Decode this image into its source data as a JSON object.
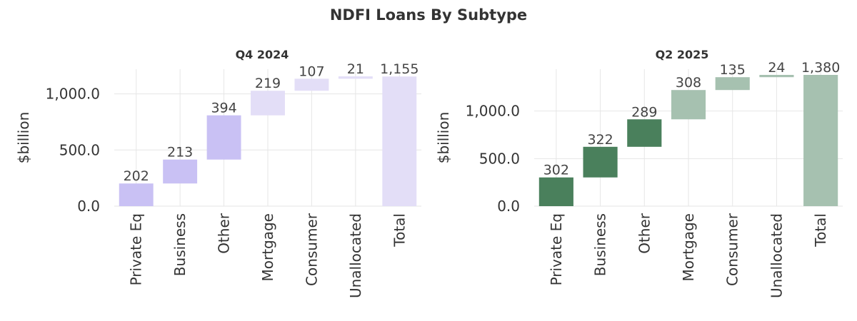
{
  "title": "NDFI Loans By Subtype",
  "chart_data": [
    {
      "type": "waterfall",
      "title": "Q4 2024",
      "ylabel": "$billion",
      "xlabel": "",
      "categories": [
        "Private Eq",
        "Business",
        "Other",
        "Mortgage",
        "Consumer",
        "Unallocated",
        "Total"
      ],
      "values": [
        202,
        213,
        394,
        219,
        107,
        21,
        1155
      ],
      "labels": [
        "202",
        "213",
        "394",
        "219",
        "107",
        "21",
        "1,155"
      ],
      "ylim": [
        0,
        1220
      ],
      "yticks": [
        0,
        500,
        1000
      ],
      "ytick_labels": [
        "0.0",
        "500.0",
        "1,000.0"
      ],
      "grid": true,
      "colors": [
        "#c9c1f4",
        "#c9c1f4",
        "#c9c1f4",
        "#e3def7",
        "#e3def7",
        "#e3def7",
        "#e3def7"
      ]
    },
    {
      "type": "waterfall",
      "title": "Q2 2025",
      "ylabel": "$billion",
      "xlabel": "",
      "categories": [
        "Private Eq",
        "Business",
        "Other",
        "Mortgage",
        "Consumer",
        "Unallocated",
        "Total"
      ],
      "values": [
        302,
        322,
        289,
        308,
        135,
        24,
        1380
      ],
      "labels": [
        "302",
        "322",
        "289",
        "308",
        "135",
        "24",
        "1,380"
      ],
      "ylim": [
        0,
        1440
      ],
      "yticks": [
        0,
        500,
        1000
      ],
      "ytick_labels": [
        "0.0",
        "500.0",
        "1,000.0"
      ],
      "grid": true,
      "colors": [
        "#4a805c",
        "#4a805c",
        "#4a805c",
        "#a6c1b0",
        "#a6c1b0",
        "#a6c1b0",
        "#a6c1b0"
      ]
    }
  ]
}
